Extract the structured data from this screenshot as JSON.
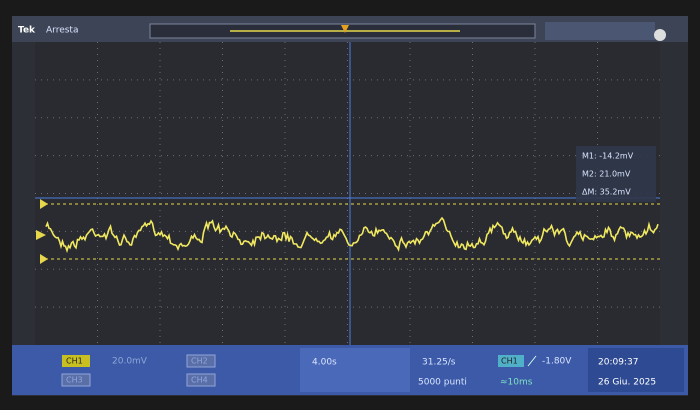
{
  "header": {
    "brand": "Tek",
    "status": "Arresta"
  },
  "readouts": {
    "m1": "M1: -14.2mV",
    "m2": "M2: 21.0mV",
    "delta": "ΔM: 35.2mV"
  },
  "status_bar": {
    "ch1": "CH1",
    "ch1_scale": "20.0mV",
    "ch2": "CH2",
    "ch3": "CH3",
    "ch4": "CH4",
    "timebase": "4.00s",
    "sample_rate": "31.25/s",
    "record_length": "5000 punti",
    "trigger_source": "CH1",
    "trigger_level": "-1.80V",
    "trigger_delay": "≈10ms",
    "time": "20:09:37",
    "date": "26 Giu. 2025"
  }
}
